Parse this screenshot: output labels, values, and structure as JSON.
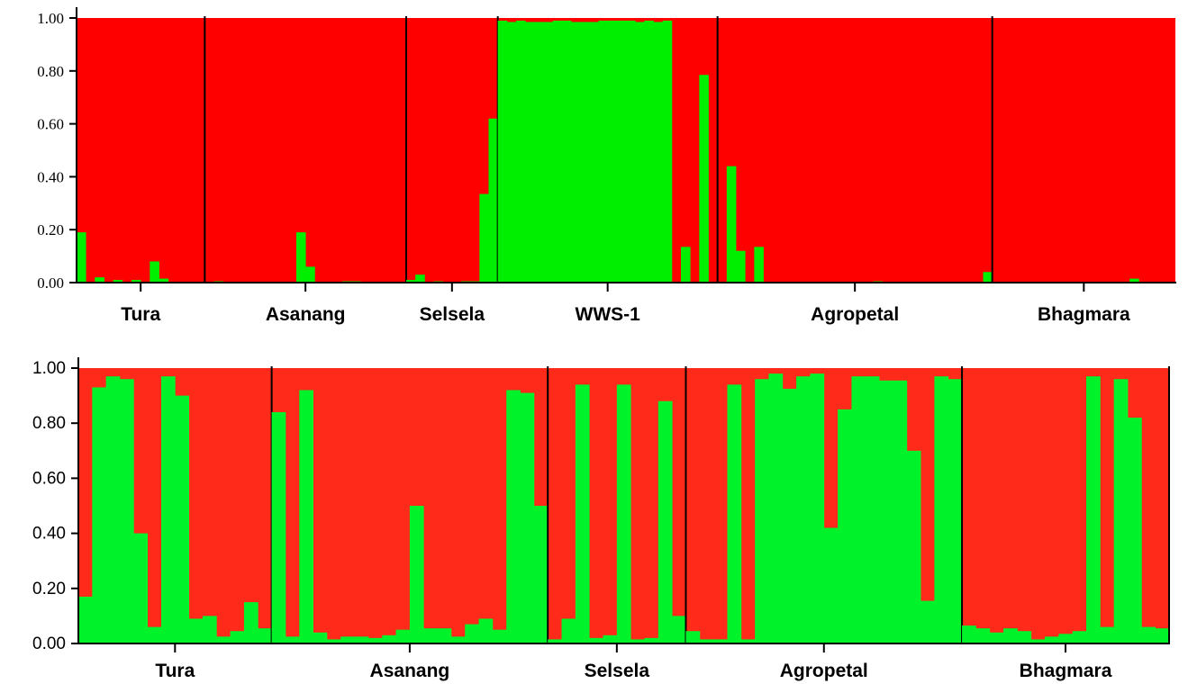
{
  "colors": {
    "cluster1": "#ff0000",
    "cluster2": "#00ee00",
    "cluster1_bottom": "#ff2a1a",
    "cluster2_bottom": "#00f32a"
  },
  "chart_data": [
    {
      "type": "bar",
      "stacked": true,
      "ylim": [
        0,
        1
      ],
      "yticks": [
        "0.00",
        "0.20",
        "0.40",
        "0.60",
        "0.80",
        "1.00"
      ],
      "populations": [
        {
          "name": "Tura",
          "green": [
            0.19,
            0,
            0.02,
            0,
            0.01,
            0,
            0.01,
            0,
            0.08,
            0.015,
            0,
            0,
            0,
            0
          ]
        },
        {
          "name": "Asanang",
          "green": [
            0,
            0.005,
            0,
            0,
            0,
            0,
            0,
            0,
            0,
            0,
            0.19,
            0.06,
            0,
            0,
            0,
            0.005,
            0.005,
            0,
            0,
            0,
            0,
            0
          ]
        },
        {
          "name": "Selsela",
          "green": [
            0.01,
            0.03,
            0,
            0.005,
            0,
            0,
            0.005,
            0.005,
            0.335,
            0.62
          ]
        },
        {
          "name": "WWS-1",
          "green": [
            0.99,
            0.985,
            0.99,
            0.985,
            0.985,
            0.985,
            0.99,
            0.99,
            0.985,
            0.985,
            0.985,
            0.99,
            0.99,
            0.99,
            0.99,
            0.985,
            0.99,
            0.985,
            0.99,
            0,
            0.135,
            0,
            0.785,
            0
          ]
        },
        {
          "name": "Agropetal",
          "green": [
            0,
            0.44,
            0.12,
            0,
            0.135,
            0,
            0,
            0,
            0,
            0,
            0,
            0,
            0,
            0,
            0,
            0,
            0,
            0.005,
            0,
            0,
            0,
            0,
            0,
            0,
            0,
            0,
            0,
            0,
            0,
            0.04
          ]
        },
        {
          "name": "Bhagmara",
          "green": [
            0,
            0,
            0,
            0,
            0,
            0,
            0,
            0,
            0,
            0,
            0,
            0,
            0,
            0,
            0,
            0.015,
            0,
            0,
            0,
            0
          ]
        }
      ]
    },
    {
      "type": "bar",
      "stacked": true,
      "ylim": [
        0,
        1
      ],
      "yticks": [
        "0.00",
        "0.20",
        "0.40",
        "0.60",
        "0.80",
        "1.00"
      ],
      "populations": [
        {
          "name": "Tura",
          "green": [
            0.17,
            0.93,
            0.97,
            0.96,
            0.4,
            0.06,
            0.97,
            0.9,
            0.09,
            0.1,
            0.025,
            0.045,
            0.15,
            0.055
          ]
        },
        {
          "name": "Asanang",
          "green": [
            0.84,
            0.025,
            0.92,
            0.04,
            0.015,
            0.025,
            0.025,
            0.02,
            0.03,
            0.05,
            0.5,
            0.055,
            0.055,
            0.025,
            0.07,
            0.09,
            0.05,
            0.92,
            0.91,
            0.5
          ]
        },
        {
          "name": "Selsela",
          "green": [
            0.015,
            0.09,
            0.94,
            0.02,
            0.03,
            0.94,
            0.015,
            0.02,
            0.88,
            0.1
          ]
        },
        {
          "name": "Agropetal",
          "green": [
            0.045,
            0.015,
            0.015,
            0.94,
            0.015,
            0.96,
            0.98,
            0.925,
            0.97,
            0.98,
            0.42,
            0.85,
            0.97,
            0.97,
            0.955,
            0.955,
            0.7,
            0.155,
            0.97,
            0.96
          ]
        },
        {
          "name": "Bhagmara",
          "green": [
            0.065,
            0.055,
            0.04,
            0.055,
            0.045,
            0.015,
            0.025,
            0.035,
            0.045,
            0.97,
            0.06,
            0.96,
            0.82,
            0.06,
            0.055
          ]
        }
      ]
    }
  ]
}
